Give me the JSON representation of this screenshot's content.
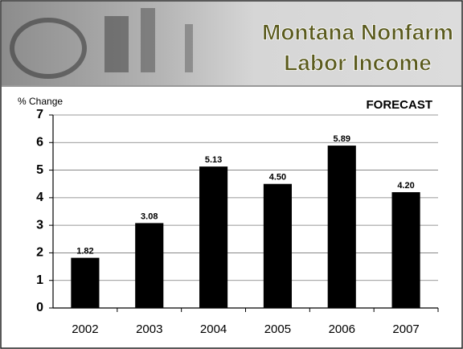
{
  "chart_data": {
    "type": "bar",
    "title": [
      "Montana Nonfarm",
      "Labor Income"
    ],
    "y_label": "% Change",
    "annotation": "FORECAST",
    "categories": [
      "2002",
      "2003",
      "2004",
      "2005",
      "2006",
      "2007"
    ],
    "values": [
      1.82,
      3.08,
      5.13,
      4.5,
      5.89,
      4.2
    ],
    "value_labels": [
      "1.82",
      "3.08",
      "5.13",
      "4.50",
      "5.89",
      "4.20"
    ],
    "color": "#000000",
    "ylim": [
      0,
      7
    ],
    "yticks": [
      0,
      1,
      2,
      3,
      4,
      5,
      6,
      7
    ],
    "grid": true
  }
}
